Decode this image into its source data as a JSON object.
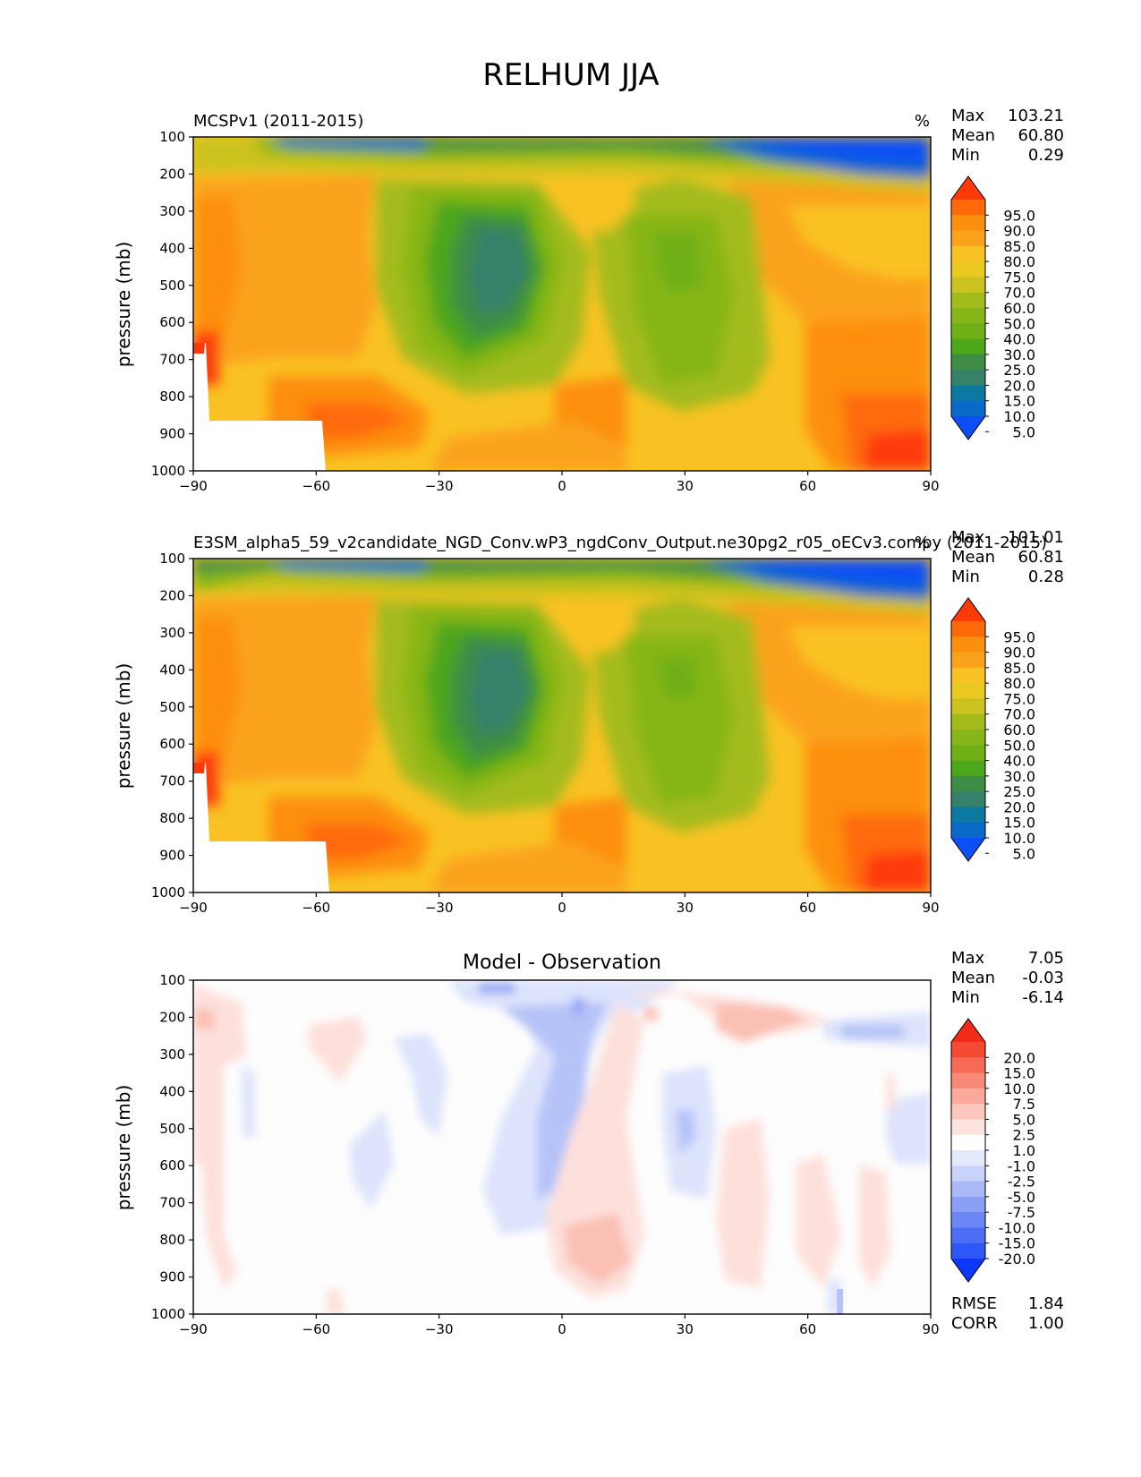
{
  "title": "RELHUM JJA",
  "chart_data": [
    {
      "type": "heatmap",
      "title": "MCSPv1 (2011-2015)",
      "units": "%",
      "ylabel": "pressure (mb)",
      "xlim": [
        -90,
        90
      ],
      "ylim": [
        1000,
        100
      ],
      "x_ticks": [
        "−90",
        "−60",
        "−30",
        "0",
        "30",
        "60",
        "90"
      ],
      "y_ticks": [
        "100",
        "200",
        "300",
        "400",
        "500",
        "600",
        "700",
        "800",
        "900",
        "1000"
      ],
      "stats": [
        {
          "label": "Max",
          "value": "103.21"
        },
        {
          "label": "Mean",
          "value": "60.80"
        },
        {
          "label": "Min",
          "value": "0.29"
        }
      ],
      "colorbar_labels": [
        "95.0",
        "90.0",
        "85.0",
        "80.0",
        "75.0",
        "70.0",
        "60.0",
        "50.0",
        "40.0",
        "30.0",
        "25.0",
        "20.0",
        "15.0",
        "10.0",
        "5.0"
      ]
    },
    {
      "type": "heatmap",
      "title": "E3SM_alpha5_59_v2candidate_NGD_Conv.wP3_ngdConv_Output.ne30pg2_r05_oECv3.compy (2011-2015)",
      "units": "%",
      "ylabel": "pressure (mb)",
      "xlim": [
        -90,
        90
      ],
      "ylim": [
        1000,
        100
      ],
      "x_ticks": [
        "−90",
        "−60",
        "−30",
        "0",
        "30",
        "60",
        "90"
      ],
      "y_ticks": [
        "100",
        "200",
        "300",
        "400",
        "500",
        "600",
        "700",
        "800",
        "900",
        "1000"
      ],
      "stats": [
        {
          "label": "Max",
          "value": "101.01"
        },
        {
          "label": "Mean",
          "value": "60.81"
        },
        {
          "label": "Min",
          "value": "0.28"
        }
      ],
      "colorbar_labels": [
        "95.0",
        "90.0",
        "85.0",
        "80.0",
        "75.0",
        "70.0",
        "60.0",
        "50.0",
        "40.0",
        "30.0",
        "25.0",
        "20.0",
        "15.0",
        "10.0",
        "5.0"
      ]
    },
    {
      "type": "heatmap",
      "title": "Model - Observation",
      "ylabel": "pressure (mb)",
      "xlim": [
        -90,
        90
      ],
      "ylim": [
        1000,
        100
      ],
      "x_ticks": [
        "−90",
        "−60",
        "−30",
        "0",
        "30",
        "60",
        "90"
      ],
      "y_ticks": [
        "100",
        "200",
        "300",
        "400",
        "500",
        "600",
        "700",
        "800",
        "900",
        "1000"
      ],
      "stats": [
        {
          "label": "Max",
          "value": "7.05"
        },
        {
          "label": "Mean",
          "value": "-0.03"
        },
        {
          "label": "Min",
          "value": "-6.14"
        }
      ],
      "metrics": [
        {
          "label": "RMSE",
          "value": "1.84"
        },
        {
          "label": "CORR",
          "value": "1.00"
        }
      ],
      "colorbar_labels": [
        "20.0",
        "15.0",
        "10.0",
        "7.5",
        "5.0",
        "2.5",
        "1.0",
        "-1.0",
        "-2.5",
        "-5.0",
        "-7.5",
        "-10.0",
        "-15.0",
        "-20.0"
      ]
    }
  ]
}
